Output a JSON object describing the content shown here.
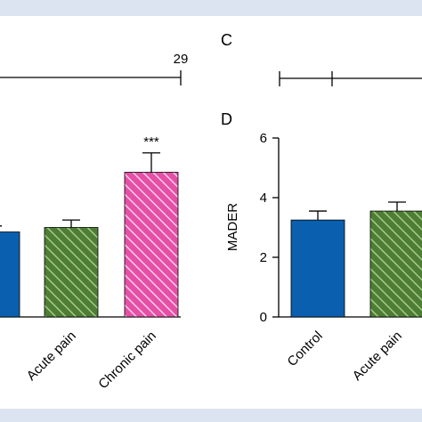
{
  "panel_labels": {
    "c": "C",
    "d": "D"
  },
  "timeline_left": {
    "end_label": "29"
  },
  "colors": {
    "control": "#0a5fae",
    "acute": "#4e7d34",
    "acute_stripe": "#a6c98c",
    "chronic": "#e64fa6",
    "chronic_stripe": "#fbd0e9",
    "frame": "#d6def0"
  },
  "chart_data": [
    {
      "panel": "left",
      "type": "bar",
      "categories": [
        "",
        "Acute pain",
        "Chronic pain"
      ],
      "values": [
        2.85,
        3.0,
        4.85
      ],
      "errors": [
        0.2,
        0.25,
        0.65
      ],
      "annotations": [
        "",
        "",
        "***"
      ],
      "ylim": [
        0,
        6
      ],
      "title": "",
      "xlabel": "",
      "ylabel": ""
    },
    {
      "panel": "D",
      "type": "bar",
      "categories": [
        "Control",
        "Acute pain"
      ],
      "values": [
        3.25,
        3.55
      ],
      "errors": [
        0.3,
        0.3
      ],
      "ylim": [
        0,
        6
      ],
      "yticks": [
        0,
        2,
        4,
        6
      ],
      "ylabel": "MADER",
      "title": "",
      "xlabel": ""
    }
  ]
}
